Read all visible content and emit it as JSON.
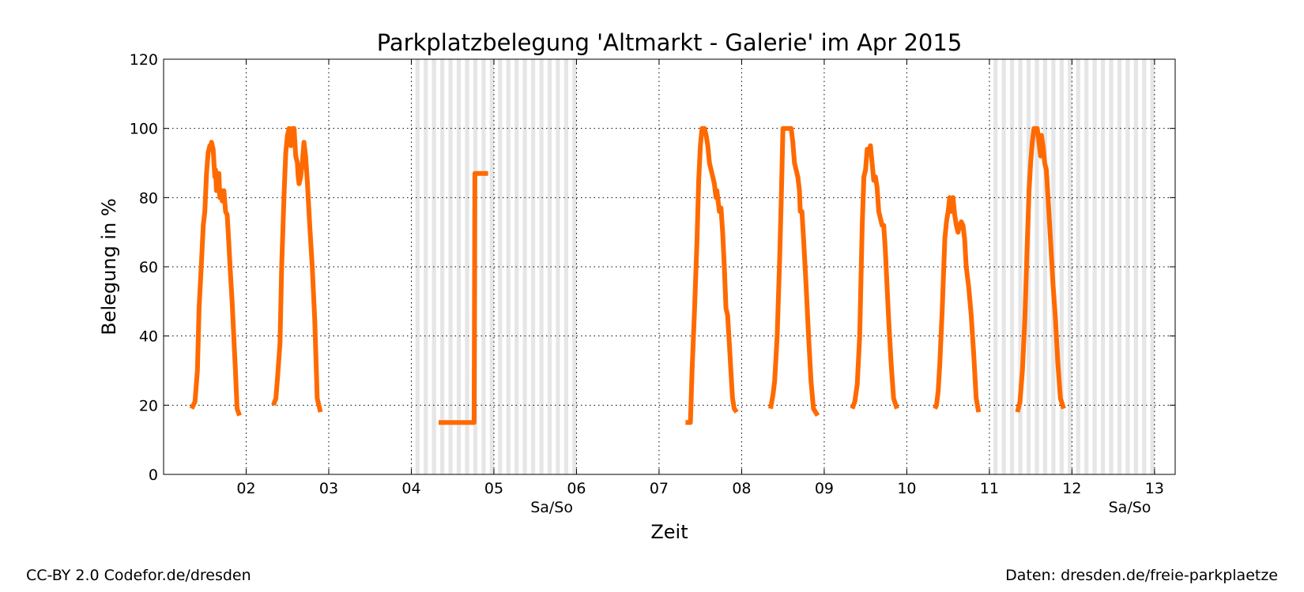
{
  "chart_data": {
    "type": "line",
    "title": "Parkplatzbelegung 'Altmarkt - Galerie' im Apr 2015",
    "xlabel": "Zeit",
    "ylabel": "Belegung in %",
    "xlim": [
      1.0,
      13.25
    ],
    "ylim": [
      0,
      120
    ],
    "x_unit": "day of April 2015",
    "yticks": [
      0,
      20,
      40,
      60,
      80,
      100,
      120
    ],
    "xticks": [
      {
        "value": 2,
        "label": "02"
      },
      {
        "value": 3,
        "label": "03"
      },
      {
        "value": 4,
        "label": "04"
      },
      {
        "value": 5,
        "label": "05"
      },
      {
        "value": 6,
        "label": "06"
      },
      {
        "value": 7,
        "label": "07"
      },
      {
        "value": 8,
        "label": "08"
      },
      {
        "value": 9,
        "label": "09"
      },
      {
        "value": 10,
        "label": "10"
      },
      {
        "value": 11,
        "label": "11"
      },
      {
        "value": 12,
        "label": "12"
      },
      {
        "value": 13,
        "label": "13"
      }
    ],
    "weekend_shading": [
      [
        4,
        6
      ],
      [
        11,
        13
      ]
    ],
    "weekend_labels": [
      {
        "x": 5.7,
        "label": "Sa/So"
      },
      {
        "x": 12.7,
        "label": "Sa/So"
      }
    ],
    "grid": true,
    "series_color": "#ff6a00",
    "shade_color": "#e6e6e6",
    "series": [
      {
        "points": [
          [
            1.34,
            19
          ],
          [
            1.38,
            21
          ],
          [
            1.41,
            30
          ],
          [
            1.43,
            48
          ],
          [
            1.46,
            62
          ],
          [
            1.48,
            72
          ],
          [
            1.5,
            76
          ],
          [
            1.52,
            87
          ],
          [
            1.54,
            93
          ],
          [
            1.56,
            95
          ],
          [
            1.57,
            94
          ],
          [
            1.58,
            96
          ],
          [
            1.6,
            94
          ],
          [
            1.62,
            86
          ],
          [
            1.63,
            88
          ],
          [
            1.64,
            82
          ],
          [
            1.65,
            85
          ],
          [
            1.66,
            83
          ],
          [
            1.67,
            87
          ],
          [
            1.68,
            80
          ],
          [
            1.7,
            82
          ],
          [
            1.71,
            79
          ],
          [
            1.73,
            82
          ],
          [
            1.75,
            76
          ],
          [
            1.77,
            75
          ],
          [
            1.79,
            67
          ],
          [
            1.81,
            58
          ],
          [
            1.83,
            50
          ],
          [
            1.85,
            40
          ],
          [
            1.87,
            30
          ],
          [
            1.89,
            19
          ],
          [
            1.92,
            17
          ]
        ]
      },
      {
        "points": [
          [
            2.33,
            20
          ],
          [
            2.36,
            22
          ],
          [
            2.38,
            28
          ],
          [
            2.41,
            38
          ],
          [
            2.43,
            60
          ],
          [
            2.46,
            82
          ],
          [
            2.48,
            93
          ],
          [
            2.5,
            98
          ],
          [
            2.52,
            100
          ],
          [
            2.54,
            95
          ],
          [
            2.56,
            100
          ],
          [
            2.58,
            100
          ],
          [
            2.6,
            92
          ],
          [
            2.62,
            90
          ],
          [
            2.63,
            86
          ],
          [
            2.64,
            84
          ],
          [
            2.66,
            86
          ],
          [
            2.68,
            90
          ],
          [
            2.7,
            96
          ],
          [
            2.72,
            92
          ],
          [
            2.74,
            85
          ],
          [
            2.77,
            72
          ],
          [
            2.8,
            60
          ],
          [
            2.83,
            45
          ],
          [
            2.86,
            22
          ],
          [
            2.9,
            18
          ]
        ]
      },
      {
        "points": [
          [
            4.33,
            15
          ],
          [
            4.5,
            15
          ],
          [
            4.6,
            15
          ],
          [
            4.76,
            15
          ],
          [
            4.77,
            87
          ],
          [
            4.93,
            87
          ]
        ]
      },
      {
        "points": [
          [
            7.32,
            15
          ],
          [
            7.38,
            15
          ],
          [
            7.4,
            30
          ],
          [
            7.43,
            48
          ],
          [
            7.46,
            68
          ],
          [
            7.48,
            85
          ],
          [
            7.5,
            95
          ],
          [
            7.52,
            100
          ],
          [
            7.55,
            100
          ],
          [
            7.57,
            98
          ],
          [
            7.59,
            95
          ],
          [
            7.61,
            90
          ],
          [
            7.63,
            88
          ],
          [
            7.65,
            86
          ],
          [
            7.67,
            84
          ],
          [
            7.69,
            80
          ],
          [
            7.7,
            82
          ],
          [
            7.72,
            78
          ],
          [
            7.73,
            76
          ],
          [
            7.75,
            77
          ],
          [
            7.77,
            70
          ],
          [
            7.79,
            60
          ],
          [
            7.81,
            48
          ],
          [
            7.83,
            46
          ],
          [
            7.85,
            38
          ],
          [
            7.87,
            30
          ],
          [
            7.89,
            22
          ],
          [
            7.91,
            19
          ],
          [
            7.94,
            18
          ]
        ]
      },
      {
        "points": [
          [
            8.35,
            19
          ],
          [
            8.38,
            23
          ],
          [
            8.4,
            27
          ],
          [
            8.43,
            40
          ],
          [
            8.46,
            62
          ],
          [
            8.48,
            80
          ],
          [
            8.5,
            100
          ],
          [
            8.54,
            100
          ],
          [
            8.6,
            100
          ],
          [
            8.62,
            96
          ],
          [
            8.64,
            90
          ],
          [
            8.66,
            88
          ],
          [
            8.68,
            86
          ],
          [
            8.7,
            82
          ],
          [
            8.71,
            76
          ],
          [
            8.73,
            76
          ],
          [
            8.75,
            68
          ],
          [
            8.78,
            55
          ],
          [
            8.81,
            40
          ],
          [
            8.84,
            27
          ],
          [
            8.87,
            19
          ],
          [
            8.92,
            17
          ]
        ]
      },
      {
        "points": [
          [
            9.34,
            19
          ],
          [
            9.37,
            21
          ],
          [
            9.4,
            26
          ],
          [
            9.43,
            40
          ],
          [
            9.46,
            72
          ],
          [
            9.48,
            86
          ],
          [
            9.5,
            88
          ],
          [
            9.52,
            94
          ],
          [
            9.54,
            93
          ],
          [
            9.56,
            95
          ],
          [
            9.58,
            90
          ],
          [
            9.6,
            85
          ],
          [
            9.62,
            86
          ],
          [
            9.64,
            83
          ],
          [
            9.66,
            76
          ],
          [
            9.68,
            74
          ],
          [
            9.7,
            72
          ],
          [
            9.72,
            72
          ],
          [
            9.74,
            65
          ],
          [
            9.76,
            55
          ],
          [
            9.78,
            45
          ],
          [
            9.81,
            32
          ],
          [
            9.84,
            22
          ],
          [
            9.88,
            19
          ]
        ]
      },
      {
        "points": [
          [
            10.34,
            19
          ],
          [
            10.36,
            20
          ],
          [
            10.38,
            24
          ],
          [
            10.4,
            32
          ],
          [
            10.43,
            48
          ],
          [
            10.46,
            68
          ],
          [
            10.48,
            73
          ],
          [
            10.5,
            76
          ],
          [
            10.52,
            80
          ],
          [
            10.54,
            76
          ],
          [
            10.56,
            80
          ],
          [
            10.58,
            75
          ],
          [
            10.6,
            72
          ],
          [
            10.62,
            70
          ],
          [
            10.64,
            72
          ],
          [
            10.66,
            73
          ],
          [
            10.68,
            72
          ],
          [
            10.7,
            68
          ],
          [
            10.72,
            60
          ],
          [
            10.75,
            54
          ],
          [
            10.78,
            46
          ],
          [
            10.81,
            35
          ],
          [
            10.84,
            22
          ],
          [
            10.87,
            18
          ]
        ]
      },
      {
        "points": [
          [
            11.34,
            18
          ],
          [
            11.37,
            21
          ],
          [
            11.4,
            30
          ],
          [
            11.43,
            45
          ],
          [
            11.46,
            68
          ],
          [
            11.48,
            82
          ],
          [
            11.5,
            90
          ],
          [
            11.52,
            96
          ],
          [
            11.54,
            100
          ],
          [
            11.58,
            100
          ],
          [
            11.6,
            96
          ],
          [
            11.62,
            92
          ],
          [
            11.63,
            98
          ],
          [
            11.65,
            95
          ],
          [
            11.67,
            90
          ],
          [
            11.69,
            88
          ],
          [
            11.71,
            80
          ],
          [
            11.74,
            68
          ],
          [
            11.77,
            55
          ],
          [
            11.8,
            45
          ],
          [
            11.83,
            32
          ],
          [
            11.86,
            22
          ],
          [
            11.9,
            19
          ]
        ]
      }
    ]
  },
  "footer": {
    "left": "CC-BY 2.0 Codefor.de/dresden",
    "right": "Daten: dresden.de/freie-parkplaetze"
  }
}
